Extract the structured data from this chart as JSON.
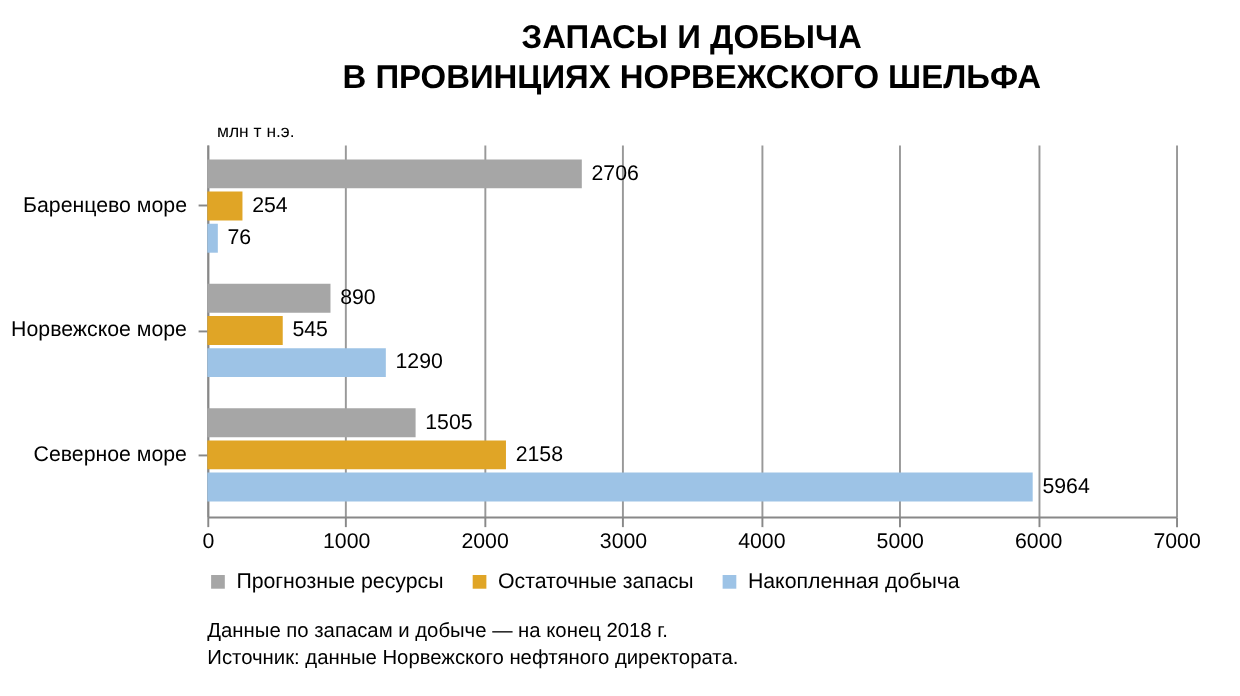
{
  "chart_data": {
    "type": "bar",
    "orientation": "horizontal",
    "title": "ЗАПАСЫ И ДОБЫЧА\nВ ПРОВИНЦИЯХ НОРВЕЖСКОГО ШЕЛЬФА",
    "xlabel": "млн т н.э.",
    "categories": [
      "Баренцево море",
      "Норвежское море",
      "Северное море"
    ],
    "series": [
      {
        "name": "Прогнозные ресурсы",
        "color": "#a6a6a6",
        "values": [
          2706,
          890,
          1505
        ]
      },
      {
        "name": "Остаточные запасы",
        "color": "#e0a526",
        "values": [
          254,
          545,
          2158
        ]
      },
      {
        "name": "Накопленная добыча",
        "color": "#9dc3e6",
        "values": [
          76,
          1290,
          5964
        ]
      }
    ],
    "xlim": [
      0,
      7000
    ],
    "xticks": [
      0,
      1000,
      2000,
      3000,
      4000,
      5000,
      6000,
      7000
    ],
    "grid": "x",
    "legend": "bottom",
    "data_labels": true,
    "annotations": [
      "Данные по запасам и добыче — на конец 2018 г.",
      "Источник: данные Норвежского нефтяного директората."
    ]
  }
}
